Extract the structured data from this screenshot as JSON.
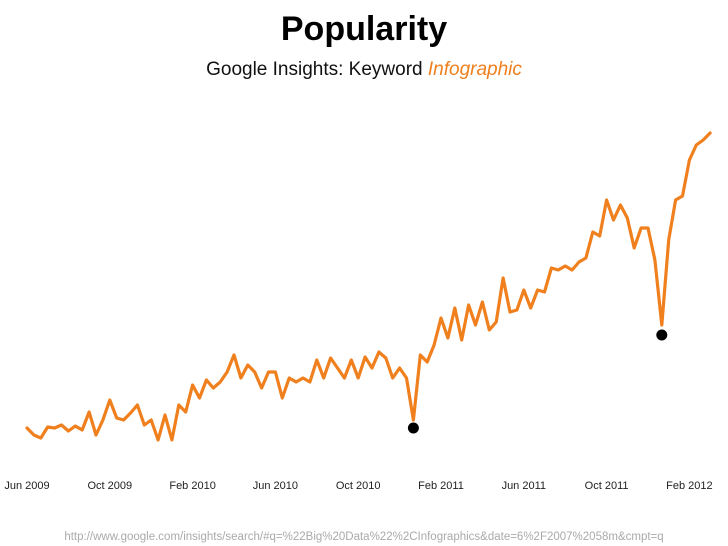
{
  "chart_data": {
    "type": "line",
    "title": "Popularity",
    "subtitle": {
      "text": "Google Insights: Keyword",
      "highlight": "Infographic"
    },
    "footer": "http://www.google.com/insights/search/#q=%22Big%20Data%22%2CInfographics&date=6%2F2007%2058m&cmpt=q",
    "categories": [
      "Jun 2009",
      null,
      null,
      null,
      null,
      null,
      null,
      null,
      null,
      null,
      null,
      null,
      "Oct 2009",
      null,
      null,
      null,
      null,
      null,
      null,
      null,
      null,
      null,
      null,
      null,
      "Feb 2010",
      null,
      null,
      null,
      null,
      null,
      null,
      null,
      null,
      null,
      null,
      null,
      "Jun 2010",
      null,
      null,
      null,
      null,
      null,
      null,
      null,
      null,
      null,
      null,
      null,
      "Oct 2010",
      null,
      null,
      null,
      null,
      null,
      null,
      null,
      null,
      null,
      null,
      null,
      "Feb 2011",
      null,
      null,
      null,
      null,
      null,
      null,
      null,
      null,
      null,
      null,
      null,
      "Jun 2011",
      null,
      null,
      null,
      null,
      null,
      null,
      null,
      null,
      null,
      null,
      null,
      "Oct 2011",
      null,
      null,
      null,
      null,
      null,
      null,
      null,
      null,
      null,
      null,
      null,
      "Feb 2012",
      null,
      null,
      null
    ],
    "series": [
      {
        "color": "#f07f1e",
        "style": "line",
        "values": [
          42,
          35,
          32,
          43,
          42,
          45,
          39,
          44,
          40,
          58,
          35,
          50,
          70,
          52,
          50,
          57,
          65,
          45,
          50,
          30,
          55,
          30,
          65,
          58,
          85,
          72,
          90,
          82,
          88,
          98,
          115,
          92,
          105,
          98,
          82,
          98,
          98,
          72,
          92,
          88,
          92,
          88,
          110,
          92,
          112,
          102,
          92,
          110,
          92,
          113,
          102,
          118,
          112,
          92,
          102,
          92,
          50,
          115,
          108,
          125,
          152,
          132,
          162,
          130,
          165,
          145,
          168,
          140,
          148,
          192,
          158,
          160,
          180,
          162,
          180,
          178,
          202,
          200,
          204,
          200,
          208,
          212,
          238,
          234,
          270,
          250,
          265,
          252,
          222,
          242,
          242,
          210,
          145,
          230,
          270,
          274,
          310,
          325,
          330,
          337
        ]
      },
      {
        "color": "#000000",
        "style": "dots",
        "values": [
          null,
          null,
          null,
          null,
          null,
          null,
          null,
          null,
          null,
          null,
          null,
          null,
          null,
          null,
          null,
          null,
          null,
          null,
          null,
          null,
          null,
          null,
          null,
          null,
          null,
          null,
          null,
          null,
          null,
          null,
          null,
          null,
          null,
          null,
          null,
          null,
          null,
          null,
          null,
          null,
          null,
          null,
          null,
          null,
          null,
          null,
          null,
          null,
          null,
          null,
          null,
          null,
          null,
          null,
          null,
          null,
          42,
          null,
          null,
          null,
          null,
          null,
          null,
          null,
          null,
          null,
          null,
          null,
          null,
          null,
          null,
          null,
          null,
          null,
          null,
          null,
          null,
          null,
          null,
          null,
          null,
          null,
          null,
          null,
          null,
          null,
          null,
          null,
          null,
          null,
          null,
          null,
          135,
          null,
          null,
          null,
          null,
          null,
          null,
          null
        ]
      }
    ],
    "ylim": [
      0,
      350
    ],
    "grid": false
  }
}
